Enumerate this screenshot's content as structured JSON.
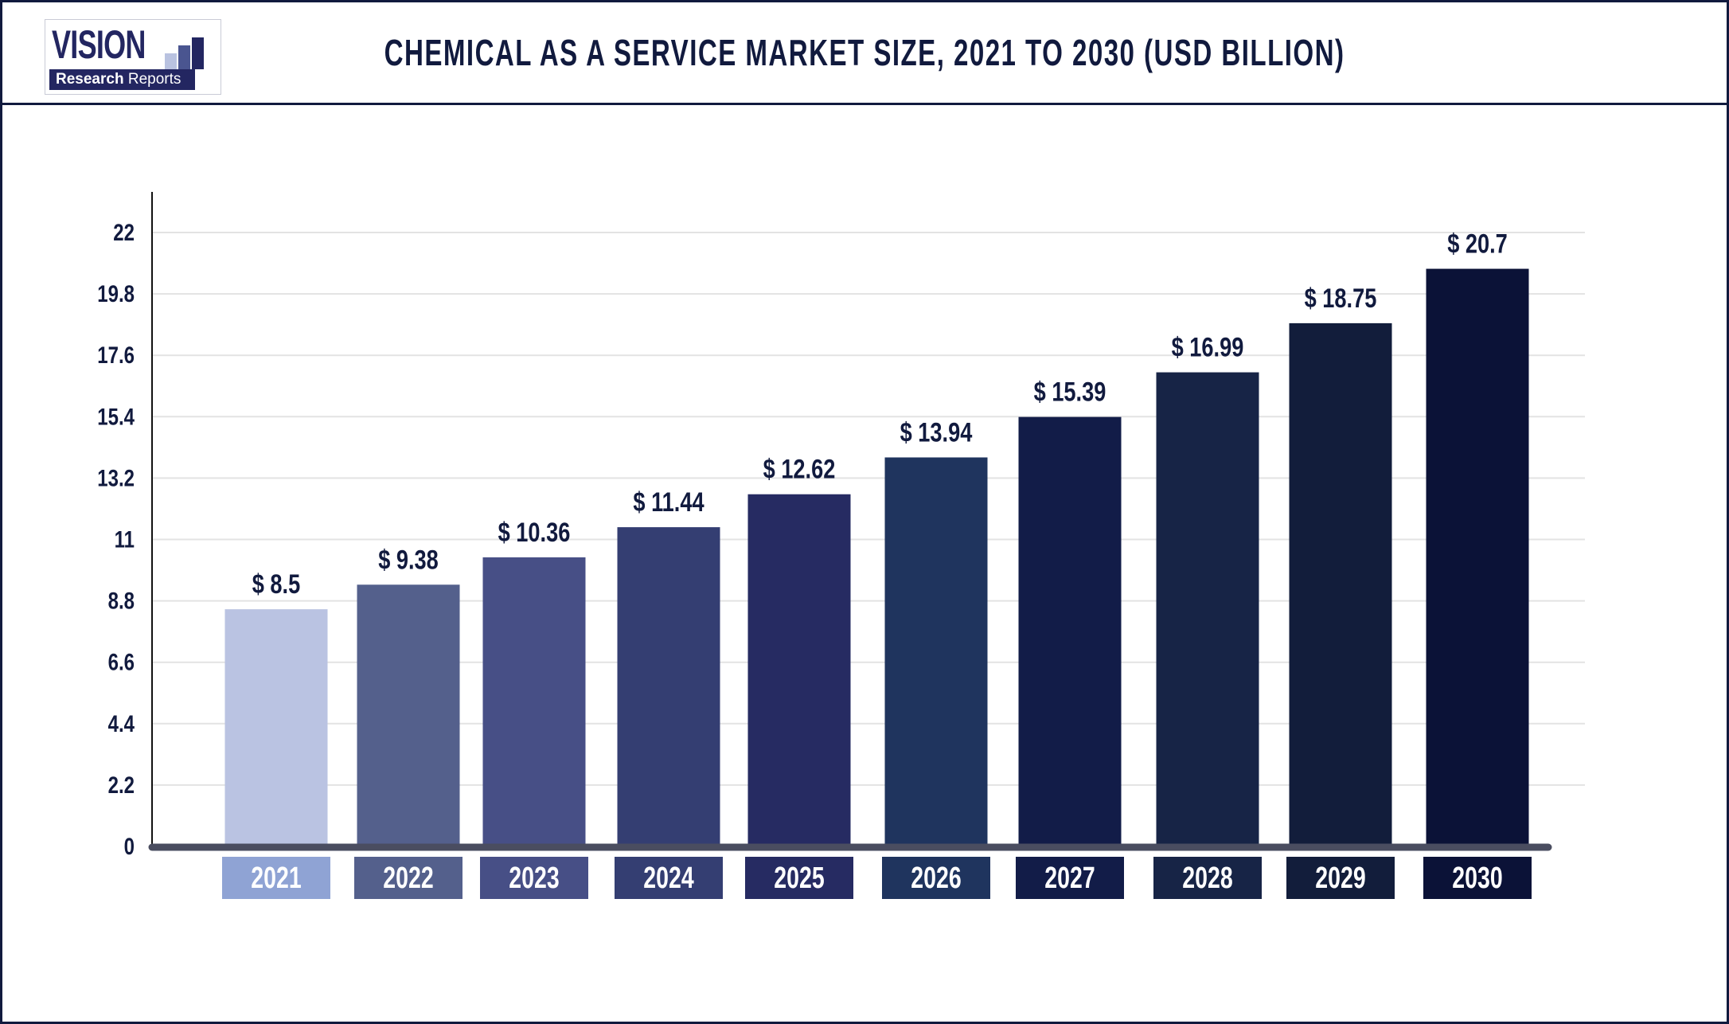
{
  "header": {
    "title": "CHEMICAL AS A SERVICE MARKET SIZE, 2021 TO 2030 (USD BILLION)",
    "logo_text": "VISION Research Reports"
  },
  "chart_data": {
    "type": "bar",
    "title": "CHEMICAL AS A SERVICE MARKET SIZE, 2021 TO 2030 (USD BILLION)",
    "categories": [
      "2021",
      "2022",
      "2023",
      "2024",
      "2025",
      "2026",
      "2027",
      "2028",
      "2029",
      "2030"
    ],
    "values": [
      8.5,
      9.38,
      10.36,
      11.44,
      12.62,
      13.94,
      15.39,
      16.99,
      18.75,
      20.7
    ],
    "value_labels": [
      "$ 8.5",
      "$ 9.38",
      "$ 10.36",
      "$ 11.44",
      "$ 12.62",
      "$ 13.94",
      "$ 15.39",
      "$ 16.99",
      "$ 18.75",
      "$ 20.7"
    ],
    "yticks": [
      "0",
      "2.2",
      "4.4",
      "6.6",
      "8.8",
      "11",
      "13.2",
      "15.4",
      "17.6",
      "19.8",
      "22"
    ],
    "ylim": [
      0,
      22
    ],
    "grid": true,
    "xlabel": "",
    "ylabel": "",
    "bar_colors": [
      "#bac3e2",
      "#54608c",
      "#474f86",
      "#343e72",
      "#262b62",
      "#1f345e",
      "#121c48",
      "#172446",
      "#121d3b",
      "#0b1237"
    ],
    "label_box_colors": [
      "#8fa3d4",
      "#54608c",
      "#474f86",
      "#343e72",
      "#262b62",
      "#1f345e",
      "#121c48",
      "#172446",
      "#121d3b",
      "#0b1237"
    ]
  }
}
